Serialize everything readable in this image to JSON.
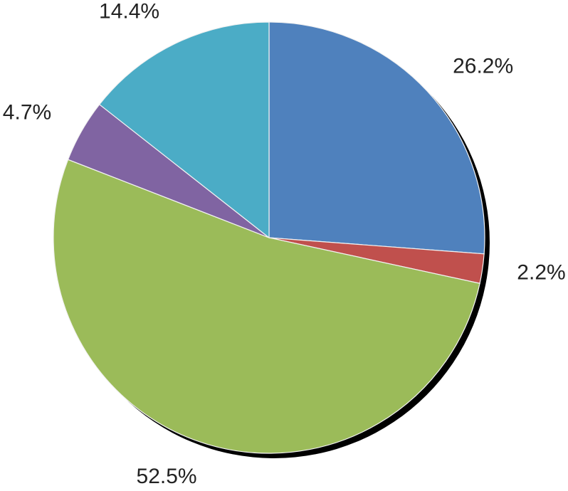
{
  "chart_data": {
    "type": "pie",
    "title": "",
    "slices": [
      {
        "value": 26.2,
        "label": "26.2%",
        "color": "#4f81bd"
      },
      {
        "value": 2.2,
        "label": "2.2%",
        "color": "#c0504d"
      },
      {
        "value": 52.5,
        "label": "52.5%",
        "color": "#9bbb59"
      },
      {
        "value": 4.7,
        "label": "4.7%",
        "color": "#8064a2"
      },
      {
        "value": 14.4,
        "label": "14.4%",
        "color": "#4bacc6"
      }
    ],
    "start": "12 o'clock",
    "direction": "clockwise",
    "legend": "none",
    "shadow": true
  }
}
